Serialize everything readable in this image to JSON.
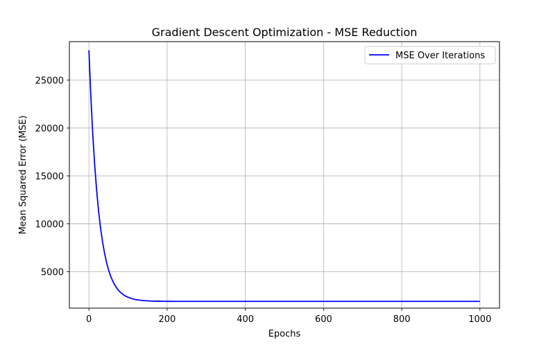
{
  "chart_data": {
    "type": "line",
    "title": "Gradient Descent Optimization - MSE Reduction",
    "xlabel": "Epochs",
    "ylabel": "Mean Squared Error (MSE)",
    "xlim": [
      -50,
      1050
    ],
    "ylim": [
      1200,
      29000
    ],
    "x_ticks": [
      0,
      200,
      400,
      600,
      800,
      1000
    ],
    "y_ticks": [
      5000,
      10000,
      15000,
      20000,
      25000
    ],
    "grid": true,
    "legend_position": "top-right",
    "series": [
      {
        "name": "MSE Over Iterations",
        "color": "#0000ff",
        "x": [
          0,
          5,
          10,
          15,
          20,
          25,
          30,
          35,
          40,
          45,
          50,
          55,
          60,
          65,
          70,
          75,
          80,
          85,
          90,
          95,
          100,
          110,
          120,
          130,
          140,
          150,
          160,
          170,
          180,
          190,
          200,
          250,
          300,
          400,
          500,
          600,
          700,
          800,
          900,
          1000
        ],
        "y": [
          28100,
          23200,
          19200,
          15980,
          13350,
          11220,
          9480,
          8070,
          6920,
          5980,
          5220,
          4600,
          4100,
          3690,
          3360,
          3090,
          2870,
          2690,
          2550,
          2430,
          2340,
          2190,
          2090,
          2030,
          1990,
          1960,
          1940,
          1930,
          1920,
          1915,
          1910,
          1905,
          1905,
          1905,
          1905,
          1905,
          1905,
          1905,
          1905,
          1905
        ]
      }
    ]
  }
}
